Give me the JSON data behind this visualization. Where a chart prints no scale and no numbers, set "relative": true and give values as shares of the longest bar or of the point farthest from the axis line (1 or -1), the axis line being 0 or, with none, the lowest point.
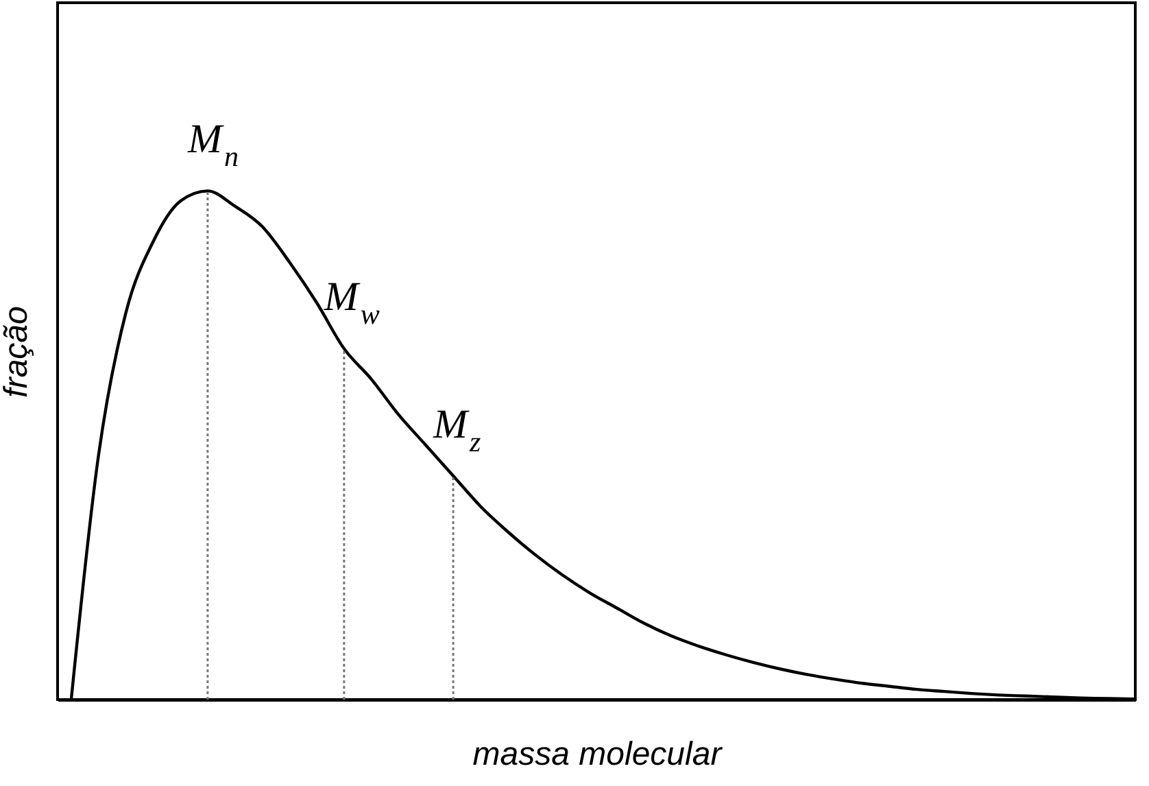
{
  "chart_data": {
    "type": "line",
    "relative": true,
    "xlabel": "massa molecular",
    "ylabel": "fração",
    "categories": [
      null,
      null,
      null,
      null,
      null,
      null,
      null,
      null,
      null,
      null,
      null,
      null,
      null,
      null,
      null,
      null,
      null,
      null,
      null,
      null,
      null,
      null,
      null,
      null,
      null,
      null,
      null,
      null,
      null,
      null,
      null,
      null,
      null,
      null,
      null,
      null,
      null,
      null,
      null,
      null
    ],
    "series": [
      {
        "color": "#000000",
        "values": [
          0,
          0.48,
          0.76,
          0.9,
          0.98,
          1.0,
          0.97,
          0.93,
          0.86,
          0.78,
          0.69,
          0.63,
          0.56,
          0.5,
          0.44,
          0.38,
          0.33,
          0.285,
          0.245,
          0.21,
          0.18,
          0.15,
          0.125,
          0.105,
          0.088,
          0.073,
          0.06,
          0.049,
          0.04,
          0.032,
          0.026,
          0.02,
          0.016,
          0.012,
          0.009,
          0.007,
          0.005,
          0.003,
          0.002,
          0.001
        ]
      }
    ],
    "annotations": [
      {
        "text": "M$_{n}$",
        "y": 1.0
      },
      {
        "text": "M$_{w}$",
        "y": 0.69
      },
      {
        "text": "M$_{z}$",
        "y": 0.44
      }
    ],
    "grid": false,
    "marker": "none",
    "line_style": "solid"
  }
}
